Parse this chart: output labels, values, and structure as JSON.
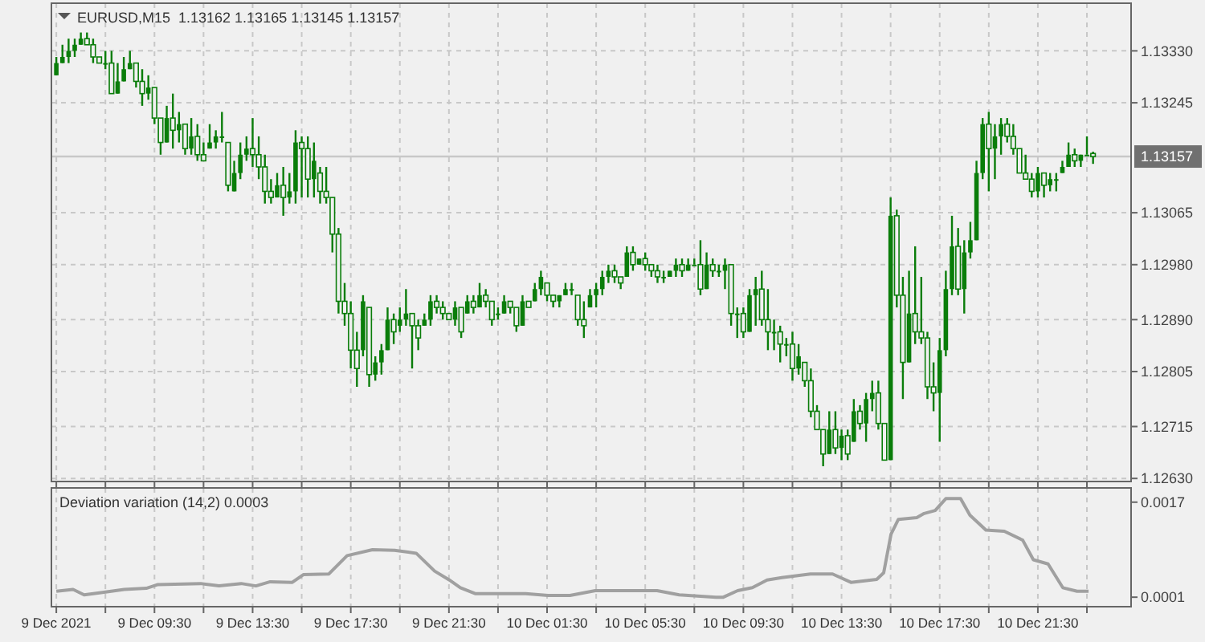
{
  "chart_data": [
    {
      "type": "candlestick",
      "title": "EURUSD,M15  1.13162 1.13165 1.13145 1.13157",
      "color": "#0a7d0a",
      "grid": true,
      "tick_labels": "y",
      "x": [
        "2021-12-09T05:30",
        "2021-12-09T05:45",
        "2021-12-09T06:00",
        "2021-12-09T06:15",
        "2021-12-09T06:30",
        "2021-12-09T06:45",
        "2021-12-09T07:00",
        "2021-12-09T07:15",
        "2021-12-09T07:30",
        "2021-12-09T07:45",
        "2021-12-09T08:00",
        "2021-12-09T08:15",
        "2021-12-09T08:30",
        "2021-12-09T08:45",
        "2021-12-09T09:00",
        "2021-12-09T09:15",
        "2021-12-09T09:30",
        "2021-12-09T09:45",
        "2021-12-09T10:00",
        "2021-12-09T10:15",
        "2021-12-09T10:30",
        "2021-12-09T10:45",
        "2021-12-09T11:00",
        "2021-12-09T11:15",
        "2021-12-09T11:30",
        "2021-12-09T11:45",
        "2021-12-09T12:00",
        "2021-12-09T12:15",
        "2021-12-09T12:30",
        "2021-12-09T12:45",
        "2021-12-09T13:00",
        "2021-12-09T13:15",
        "2021-12-09T13:30",
        "2021-12-09T13:45",
        "2021-12-09T14:00",
        "2021-12-09T14:15",
        "2021-12-09T14:30",
        "2021-12-09T14:45",
        "2021-12-09T15:00",
        "2021-12-09T15:15",
        "2021-12-09T15:30",
        "2021-12-09T15:45",
        "2021-12-09T16:00",
        "2021-12-09T16:15",
        "2021-12-09T16:30",
        "2021-12-09T16:45",
        "2021-12-09T17:00",
        "2021-12-09T17:15",
        "2021-12-09T17:30",
        "2021-12-09T17:45",
        "2021-12-09T18:00",
        "2021-12-09T18:15",
        "2021-12-09T18:30",
        "2021-12-09T18:45",
        "2021-12-09T19:00",
        "2021-12-09T19:15",
        "2021-12-09T19:30",
        "2021-12-09T19:45",
        "2021-12-09T20:00",
        "2021-12-09T20:15",
        "2021-12-09T20:30",
        "2021-12-09T20:45",
        "2021-12-09T21:00",
        "2021-12-09T21:15",
        "2021-12-09T21:30",
        "2021-12-09T21:45",
        "2021-12-09T22:00",
        "2021-12-09T22:15",
        "2021-12-09T22:30",
        "2021-12-09T22:45",
        "2021-12-09T23:00",
        "2021-12-09T23:15",
        "2021-12-09T23:30",
        "2021-12-09T23:45",
        "2021-12-10T00:00",
        "2021-12-10T00:15",
        "2021-12-10T00:30",
        "2021-12-10T00:45",
        "2021-12-10T01:00",
        "2021-12-10T01:15",
        "2021-12-10T01:30",
        "2021-12-10T01:45",
        "2021-12-10T02:00",
        "2021-12-10T02:15",
        "2021-12-10T02:30",
        "2021-12-10T02:45",
        "2021-12-10T03:00",
        "2021-12-10T03:15",
        "2021-12-10T03:30",
        "2021-12-10T03:45",
        "2021-12-10T04:00",
        "2021-12-10T04:15",
        "2021-12-10T04:30",
        "2021-12-10T04:45",
        "2021-12-10T05:00",
        "2021-12-10T05:15",
        "2021-12-10T05:30",
        "2021-12-10T05:45",
        "2021-12-10T06:00",
        "2021-12-10T06:15",
        "2021-12-10T06:30",
        "2021-12-10T06:45",
        "2021-12-10T07:00",
        "2021-12-10T07:15",
        "2021-12-10T07:30",
        "2021-12-10T07:45",
        "2021-12-10T08:00",
        "2021-12-10T08:15",
        "2021-12-10T08:30",
        "2021-12-10T08:45",
        "2021-12-10T09:00",
        "2021-12-10T09:15",
        "2021-12-10T09:30",
        "2021-12-10T09:45",
        "2021-12-10T10:00",
        "2021-12-10T10:15",
        "2021-12-10T10:30",
        "2021-12-10T10:45",
        "2021-12-10T11:00",
        "2021-12-10T11:15",
        "2021-12-10T11:30",
        "2021-12-10T11:45",
        "2021-12-10T12:00",
        "2021-12-10T12:15",
        "2021-12-10T12:30",
        "2021-12-10T12:45",
        "2021-12-10T13:00",
        "2021-12-10T13:15",
        "2021-12-10T13:30",
        "2021-12-10T13:45",
        "2021-12-10T14:00",
        "2021-12-10T14:15",
        "2021-12-10T14:30",
        "2021-12-10T14:45",
        "2021-12-10T15:00",
        "2021-12-10T15:15",
        "2021-12-10T15:30",
        "2021-12-10T15:45",
        "2021-12-10T16:00",
        "2021-12-10T16:15",
        "2021-12-10T16:30",
        "2021-12-10T16:45",
        "2021-12-10T17:00",
        "2021-12-10T17:15",
        "2021-12-10T17:30",
        "2021-12-10T17:45",
        "2021-12-10T18:00",
        "2021-12-10T18:15",
        "2021-12-10T18:30",
        "2021-12-10T18:45",
        "2021-12-10T19:00",
        "2021-12-10T19:15",
        "2021-12-10T19:30",
        "2021-12-10T19:45",
        "2021-12-10T20:00",
        "2021-12-10T20:15",
        "2021-12-10T20:30",
        "2021-12-10T20:45",
        "2021-12-10T21:00",
        "2021-12-10T21:15",
        "2021-12-10T21:30",
        "2021-12-10T21:45",
        "2021-12-10T22:00",
        "2021-12-10T22:15",
        "2021-12-10T22:30",
        "2021-12-10T22:45",
        "2021-12-10T23:00",
        "2021-12-10T23:15",
        "2021-12-10T23:30",
        "2021-12-10T23:45"
      ],
      "ohlc": [
        [
          1.1329,
          1.1332,
          1.1329,
          1.1331
        ],
        [
          1.1331,
          1.1334,
          1.1331,
          1.1332
        ],
        [
          1.1332,
          1.1335,
          1.1331,
          1.1333
        ],
        [
          1.1333,
          1.1335,
          1.1332,
          1.1334
        ],
        [
          1.1334,
          1.1336,
          1.1334,
          1.1335
        ],
        [
          1.1335,
          1.1336,
          1.1334,
          1.1334
        ],
        [
          1.1334,
          1.1335,
          1.1331,
          1.1332
        ],
        [
          1.1332,
          1.1332,
          1.1331,
          1.1331
        ],
        [
          1.1331,
          1.1333,
          1.133,
          1.1331
        ],
        [
          1.1331,
          1.1333,
          1.1326,
          1.1326
        ],
        [
          1.1326,
          1.1331,
          1.1326,
          1.1328
        ],
        [
          1.1328,
          1.1332,
          1.1328,
          1.133
        ],
        [
          1.133,
          1.1333,
          1.133,
          1.1331
        ],
        [
          1.1331,
          1.1331,
          1.1327,
          1.1328
        ],
        [
          1.1328,
          1.133,
          1.1324,
          1.1326
        ],
        [
          1.1326,
          1.1329,
          1.1325,
          1.1327
        ],
        [
          1.1327,
          1.1327,
          1.1321,
          1.1322
        ],
        [
          1.1322,
          1.1322,
          1.1316,
          1.1318
        ],
        [
          1.1318,
          1.1324,
          1.1318,
          1.1322
        ],
        [
          1.1322,
          1.1326,
          1.1317,
          1.132
        ],
        [
          1.132,
          1.1323,
          1.1318,
          1.1321
        ],
        [
          1.1321,
          1.1321,
          1.1316,
          1.1317
        ],
        [
          1.1317,
          1.1322,
          1.1316,
          1.1319
        ],
        [
          1.1319,
          1.1321,
          1.1315,
          1.1316
        ],
        [
          1.1316,
          1.1318,
          1.1315,
          1.1315
        ],
        [
          1.1317,
          1.1321,
          1.1317,
          1.1318
        ],
        [
          1.1318,
          1.132,
          1.1317,
          1.1319
        ],
        [
          1.1319,
          1.1323,
          1.1318,
          1.1319
        ],
        [
          1.1318,
          1.1318,
          1.131,
          1.1311
        ],
        [
          1.131,
          1.1315,
          1.131,
          1.1313
        ],
        [
          1.1313,
          1.1318,
          1.1312,
          1.1316
        ],
        [
          1.1316,
          1.1319,
          1.1315,
          1.1317
        ],
        [
          1.1317,
          1.1322,
          1.1314,
          1.1316
        ],
        [
          1.1316,
          1.1319,
          1.1312,
          1.1314
        ],
        [
          1.1314,
          1.1316,
          1.1308,
          1.131
        ],
        [
          1.131,
          1.1312,
          1.1308,
          1.1309
        ],
        [
          1.1309,
          1.1313,
          1.1309,
          1.1311
        ],
        [
          1.1311,
          1.1314,
          1.1306,
          1.1309
        ],
        [
          1.1309,
          1.1313,
          1.1308,
          1.131
        ],
        [
          1.131,
          1.132,
          1.1308,
          1.1318
        ],
        [
          1.1318,
          1.1319,
          1.1309,
          1.1317
        ],
        [
          1.1317,
          1.1319,
          1.1309,
          1.1312
        ],
        [
          1.1312,
          1.1318,
          1.1309,
          1.1315
        ],
        [
          1.1313,
          1.1314,
          1.1308,
          1.131
        ],
        [
          1.131,
          1.1314,
          1.1308,
          1.1309
        ],
        [
          1.1309,
          1.1309,
          1.13,
          1.1303
        ],
        [
          1.1303,
          1.1304,
          1.129,
          1.1292
        ],
        [
          1.1292,
          1.1295,
          1.1288,
          1.129
        ],
        [
          1.129,
          1.1292,
          1.1281,
          1.1284
        ],
        [
          1.1284,
          1.1287,
          1.1278,
          1.1281
        ],
        [
          1.1284,
          1.1293,
          1.1283,
          1.1292
        ],
        [
          1.1291,
          1.1291,
          1.1278,
          1.128
        ],
        [
          1.128,
          1.1283,
          1.1279,
          1.1282
        ],
        [
          1.1282,
          1.1285,
          1.128,
          1.1284
        ],
        [
          1.1284,
          1.1291,
          1.1284,
          1.1289
        ],
        [
          1.1289,
          1.129,
          1.1285,
          1.1287
        ],
        [
          1.1288,
          1.1291,
          1.1287,
          1.1289
        ],
        [
          1.1289,
          1.1294,
          1.1288,
          1.129
        ],
        [
          1.129,
          1.129,
          1.1281,
          1.1288
        ],
        [
          1.1288,
          1.1289,
          1.1284,
          1.1286
        ],
        [
          1.1288,
          1.129,
          1.1288,
          1.1289
        ],
        [
          1.1289,
          1.1293,
          1.1288,
          1.1292
        ],
        [
          1.1292,
          1.1293,
          1.129,
          1.1291
        ],
        [
          1.1291,
          1.1292,
          1.1289,
          1.129
        ],
        [
          1.129,
          1.129,
          1.1289,
          1.1289
        ],
        [
          1.1289,
          1.1292,
          1.1288,
          1.1291
        ],
        [
          1.1291,
          1.1291,
          1.1286,
          1.1287
        ],
        [
          1.129,
          1.1293,
          1.129,
          1.1292
        ],
        [
          1.1292,
          1.1293,
          1.129,
          1.1291
        ],
        [
          1.1291,
          1.1295,
          1.1291,
          1.1293
        ],
        [
          1.1293,
          1.1294,
          1.1291,
          1.1292
        ],
        [
          1.1292,
          1.1292,
          1.1288,
          1.1289
        ],
        [
          1.129,
          1.1291,
          1.1289,
          1.129
        ],
        [
          1.129,
          1.1293,
          1.129,
          1.1292
        ],
        [
          1.1292,
          1.1292,
          1.129,
          1.1291
        ],
        [
          1.1291,
          1.1291,
          1.1287,
          1.1288
        ],
        [
          1.1288,
          1.1293,
          1.1288,
          1.1292
        ],
        [
          1.1292,
          1.1292,
          1.1291,
          1.1291
        ],
        [
          1.1292,
          1.1295,
          1.1292,
          1.1294
        ],
        [
          1.1294,
          1.1297,
          1.1293,
          1.1296
        ],
        [
          1.1295,
          1.1295,
          1.1292,
          1.1293
        ],
        [
          1.1293,
          1.1293,
          1.1291,
          1.1292
        ],
        [
          1.1292,
          1.1293,
          1.1291,
          1.1293
        ],
        [
          1.1293,
          1.1295,
          1.1293,
          1.1294
        ],
        [
          1.1294,
          1.1295,
          1.1293,
          1.1294
        ],
        [
          1.1293,
          1.1293,
          1.1288,
          1.1289
        ],
        [
          1.1289,
          1.1292,
          1.1286,
          1.1288
        ],
        [
          1.1291,
          1.1294,
          1.1291,
          1.1293
        ],
        [
          1.1293,
          1.1295,
          1.1291,
          1.1294
        ],
        [
          1.1294,
          1.1297,
          1.1293,
          1.1296
        ],
        [
          1.1296,
          1.1298,
          1.1295,
          1.1297
        ],
        [
          1.1297,
          1.1298,
          1.1295,
          1.1296
        ],
        [
          1.1296,
          1.1296,
          1.1294,
          1.1295
        ],
        [
          1.1296,
          1.1301,
          1.1296,
          1.13
        ],
        [
          1.13,
          1.1301,
          1.1297,
          1.1298
        ],
        [
          1.1298,
          1.1299,
          1.1298,
          1.1299
        ],
        [
          1.1299,
          1.13,
          1.1297,
          1.1298
        ],
        [
          1.1298,
          1.1298,
          1.1296,
          1.1297
        ],
        [
          1.1297,
          1.1298,
          1.1295,
          1.1296
        ],
        [
          1.1296,
          1.1297,
          1.1295,
          1.1296
        ],
        [
          1.1296,
          1.1297,
          1.1296,
          1.1297
        ],
        [
          1.1297,
          1.1299,
          1.1296,
          1.1298
        ],
        [
          1.1298,
          1.1299,
          1.1296,
          1.1297
        ],
        [
          1.1297,
          1.1299,
          1.1297,
          1.1298
        ],
        [
          1.1298,
          1.1299,
          1.1298,
          1.1298
        ],
        [
          1.1298,
          1.1302,
          1.1293,
          1.1294
        ],
        [
          1.1294,
          1.13,
          1.1294,
          1.1298
        ],
        [
          1.1298,
          1.1299,
          1.1296,
          1.1297
        ],
        [
          1.1297,
          1.1298,
          1.1296,
          1.1297
        ],
        [
          1.1297,
          1.1299,
          1.1294,
          1.1298
        ],
        [
          1.1298,
          1.1298,
          1.1288,
          1.129
        ],
        [
          1.129,
          1.1291,
          1.1286,
          1.129
        ],
        [
          1.129,
          1.1291,
          1.1286,
          1.1287
        ],
        [
          1.1287,
          1.1294,
          1.1287,
          1.1293
        ],
        [
          1.1293,
          1.1296,
          1.1288,
          1.1294
        ],
        [
          1.1294,
          1.1297,
          1.1288,
          1.1289
        ],
        [
          1.1289,
          1.1294,
          1.1284,
          1.1287
        ],
        [
          1.1287,
          1.1289,
          1.1284,
          1.1287
        ],
        [
          1.1287,
          1.1288,
          1.1282,
          1.1285
        ],
        [
          1.1285,
          1.1286,
          1.1283,
          1.1285
        ],
        [
          1.1285,
          1.1287,
          1.1279,
          1.1281
        ],
        [
          1.1281,
          1.1285,
          1.128,
          1.1283
        ],
        [
          1.1282,
          1.1282,
          1.1278,
          1.1279
        ],
        [
          1.1279,
          1.1281,
          1.1273,
          1.1274
        ],
        [
          1.1274,
          1.1275,
          1.1271,
          1.1271
        ],
        [
          1.1271,
          1.1271,
          1.1265,
          1.1267
        ],
        [
          1.1267,
          1.1274,
          1.1267,
          1.1271
        ],
        [
          1.1271,
          1.1274,
          1.1267,
          1.1268
        ],
        [
          1.1268,
          1.1271,
          1.1266,
          1.127
        ],
        [
          1.127,
          1.1271,
          1.1266,
          1.1267
        ],
        [
          1.1269,
          1.1276,
          1.1269,
          1.1274
        ],
        [
          1.1274,
          1.1275,
          1.1271,
          1.1272
        ],
        [
          1.1272,
          1.1277,
          1.1269,
          1.1276
        ],
        [
          1.1276,
          1.1279,
          1.1274,
          1.1277
        ],
        [
          1.1277,
          1.1279,
          1.1271,
          1.1272
        ],
        [
          1.1272,
          1.1272,
          1.1266,
          1.1266
        ],
        [
          1.1266,
          1.1309,
          1.1266,
          1.1306
        ],
        [
          1.1306,
          1.1307,
          1.1291,
          1.1293
        ],
        [
          1.1293,
          1.1296,
          1.1276,
          1.1282
        ],
        [
          1.1282,
          1.1297,
          1.1282,
          1.129
        ],
        [
          1.129,
          1.1301,
          1.1285,
          1.1287
        ],
        [
          1.1287,
          1.1296,
          1.1285,
          1.1286
        ],
        [
          1.1286,
          1.1287,
          1.1276,
          1.1278
        ],
        [
          1.1278,
          1.1282,
          1.1274,
          1.1277
        ],
        [
          1.1277,
          1.1286,
          1.1269,
          1.1284
        ],
        [
          1.1284,
          1.1297,
          1.1283,
          1.1294
        ],
        [
          1.1294,
          1.1306,
          1.1293,
          1.1301
        ],
        [
          1.1301,
          1.1304,
          1.1293,
          1.1294
        ],
        [
          1.1294,
          1.1302,
          1.129,
          1.13
        ],
        [
          1.13,
          1.1305,
          1.1299,
          1.1302
        ],
        [
          1.1302,
          1.1315,
          1.1302,
          1.1313
        ],
        [
          1.1313,
          1.1322,
          1.1312,
          1.1321
        ],
        [
          1.1321,
          1.1323,
          1.131,
          1.1317
        ],
        [
          1.1317,
          1.1321,
          1.1312,
          1.1319
        ],
        [
          1.1319,
          1.1322,
          1.1316,
          1.1321
        ],
        [
          1.1321,
          1.1322,
          1.1318,
          1.1319
        ],
        [
          1.1319,
          1.1321,
          1.1316,
          1.1317
        ],
        [
          1.1317,
          1.1317,
          1.1313,
          1.1313
        ],
        [
          1.1313,
          1.1316,
          1.1312,
          1.1312
        ],
        [
          1.1312,
          1.1313,
          1.1309,
          1.131
        ],
        [
          1.131,
          1.1314,
          1.1309,
          1.1313
        ],
        [
          1.1313,
          1.1313,
          1.1309,
          1.1311
        ],
        [
          1.1311,
          1.1313,
          1.131,
          1.1312
        ],
        [
          1.1312,
          1.1313,
          1.131,
          1.1312
        ],
        [
          1.1313,
          1.1315,
          1.1313,
          1.1314
        ],
        [
          1.1314,
          1.1318,
          1.1314,
          1.1316
        ],
        [
          1.1316,
          1.1317,
          1.1314,
          1.1315
        ],
        [
          1.1315,
          1.1316,
          1.1314,
          1.1316
        ],
        [
          1.1316,
          1.1319,
          1.1316,
          1.1316
        ],
        [
          1.13162,
          1.13165,
          1.13145,
          1.13157
        ]
      ],
      "xlim": [
        "2021-12-09T05:18",
        "2021-12-11T01:18"
      ],
      "xticks": [
        {
          "value": "2021-12-09T05:30",
          "label": null
        },
        {
          "value": "2021-12-09T07:30",
          "label": null
        },
        {
          "value": "2021-12-09T09:30",
          "label": null
        },
        {
          "value": "2021-12-09T11:30",
          "label": null
        },
        {
          "value": "2021-12-09T13:30",
          "label": null
        },
        {
          "value": "2021-12-09T15:30",
          "label": null
        },
        {
          "value": "2021-12-09T17:30",
          "label": null
        },
        {
          "value": "2021-12-09T19:30",
          "label": null
        },
        {
          "value": "2021-12-09T21:30",
          "label": null
        },
        {
          "value": "2021-12-09T23:30",
          "label": null
        },
        {
          "value": "2021-12-10T01:30",
          "label": null
        },
        {
          "value": "2021-12-10T03:30",
          "label": null
        },
        {
          "value": "2021-12-10T05:30",
          "label": null
        },
        {
          "value": "2021-12-10T07:30",
          "label": null
        },
        {
          "value": "2021-12-10T09:30",
          "label": null
        },
        {
          "value": "2021-12-10T11:30",
          "label": null
        },
        {
          "value": "2021-12-10T13:30",
          "label": null
        },
        {
          "value": "2021-12-10T15:30",
          "label": null
        },
        {
          "value": "2021-12-10T17:30",
          "label": null
        },
        {
          "value": "2021-12-10T19:30",
          "label": null
        },
        {
          "value": "2021-12-10T21:30",
          "label": null
        },
        {
          "value": "2021-12-10T23:30",
          "label": null
        }
      ],
      "ylim": [
        1.12625,
        1.13408
      ],
      "yticks": [
        {
          "value": 1.1333,
          "label": "1.13330"
        },
        {
          "value": 1.13245,
          "label": "1.13245"
        },
        {
          "value": 1.13065,
          "label": "1.13065"
        },
        {
          "value": 1.1298,
          "label": "1.12980"
        },
        {
          "value": 1.1289,
          "label": "1.12890"
        },
        {
          "value": 1.12805,
          "label": "1.12805"
        },
        {
          "value": 1.12715,
          "label": "1.12715"
        },
        {
          "value": 1.1263,
          "label": "1.12630"
        }
      ],
      "ref_lines": [
        {
          "axis": "y",
          "value": 1.13157,
          "label": "1.13157",
          "color": "#c8c8c8"
        }
      ]
    },
    {
      "type": "line",
      "title": "Deviation variation (14,2) 0.0003",
      "grid": "x",
      "series": [
        {
          "color": "#a0a0a0",
          "x": [
            "2021-12-09T05:30",
            "2021-12-09T06:11",
            "2021-12-09T06:38",
            "2021-12-09T07:23",
            "2021-12-09T08:16",
            "2021-12-09T09:10",
            "2021-12-09T09:37",
            "2021-12-09T11:23",
            "2021-12-09T12:08",
            "2021-12-09T13:02",
            "2021-12-09T13:38",
            "2021-12-09T14:13",
            "2021-12-09T15:07",
            "2021-12-09T15:34",
            "2021-12-09T16:36",
            "2021-12-09T17:21",
            "2021-12-09T18:23",
            "2021-12-09T19:17",
            "2021-12-09T20:10",
            "2021-12-09T20:55",
            "2021-12-09T21:31",
            "2021-12-09T21:58",
            "2021-12-09T22:34",
            "2021-12-10T00:38",
            "2021-12-10T01:32",
            "2021-12-10T02:26",
            "2021-12-10T03:28",
            "2021-12-10T05:59",
            "2021-12-10T06:53",
            "2021-12-10T08:23",
            "2021-12-10T08:41",
            "2021-12-10T09:16",
            "2021-12-10T09:52",
            "2021-12-10T10:28",
            "2021-12-10T11:04",
            "2021-12-10T12:14",
            "2021-12-10T13:08",
            "2021-12-10T13:53",
            "2021-12-10T14:56",
            "2021-12-10T15:13",
            "2021-12-10T15:31",
            "2021-12-10T15:49",
            "2021-12-10T16:34",
            "2021-12-10T16:52",
            "2021-12-10T17:19",
            "2021-12-10T17:45",
            "2021-12-10T18:21",
            "2021-12-10T18:44",
            "2021-12-10T19:23",
            "2021-12-10T20:08",
            "2021-12-10T20:53",
            "2021-12-10T21:19",
            "2021-12-10T21:55",
            "2021-12-10T22:31",
            "2021-12-10T23:06",
            "2021-12-10T23:34"
          ],
          "values": [
            0.0002,
            0.00023,
            0.00014,
            0.00018,
            0.00023,
            0.00025,
            0.00031,
            0.00033,
            0.00029,
            0.00033,
            0.00029,
            0.00036,
            0.00035,
            0.00048,
            0.00049,
            0.0008,
            0.0009,
            0.00089,
            0.00084,
            0.00054,
            0.00039,
            0.00026,
            0.00016,
            0.00016,
            0.00013,
            0.00013,
            0.00021,
            0.00021,
            0.00014,
            0.0001,
            0.0001,
            0.00021,
            0.00026,
            0.00039,
            0.00043,
            0.00049,
            0.00049,
            0.00035,
            0.0004,
            0.00051,
            0.00116,
            0.00141,
            0.00144,
            0.00151,
            0.00156,
            0.00176,
            0.00176,
            0.00148,
            0.00123,
            0.00121,
            0.00106,
            0.00073,
            0.00066,
            0.00026,
            0.0002,
            0.0002
          ]
        }
      ],
      "xlim": [
        "2021-12-09T05:18",
        "2021-12-11T01:18"
      ],
      "xticks": [
        {
          "value": "2021-12-09T05:30",
          "label": "9 Dec 2021"
        },
        {
          "value": "2021-12-09T07:30",
          "label": null
        },
        {
          "value": "2021-12-09T09:30",
          "label": "9 Dec 09:30"
        },
        {
          "value": "2021-12-09T11:30",
          "label": null
        },
        {
          "value": "2021-12-09T13:30",
          "label": "9 Dec 13:30"
        },
        {
          "value": "2021-12-09T15:30",
          "label": null
        },
        {
          "value": "2021-12-09T17:30",
          "label": "9 Dec 17:30"
        },
        {
          "value": "2021-12-09T19:30",
          "label": null
        },
        {
          "value": "2021-12-09T21:30",
          "label": "9 Dec 21:30"
        },
        {
          "value": "2021-12-09T23:30",
          "label": null
        },
        {
          "value": "2021-12-10T01:30",
          "label": "10 Dec 01:30"
        },
        {
          "value": "2021-12-10T03:30",
          "label": null
        },
        {
          "value": "2021-12-10T05:30",
          "label": "10 Dec 05:30"
        },
        {
          "value": "2021-12-10T07:30",
          "label": null
        },
        {
          "value": "2021-12-10T09:30",
          "label": "10 Dec 09:30"
        },
        {
          "value": "2021-12-10T11:30",
          "label": null
        },
        {
          "value": "2021-12-10T13:30",
          "label": "10 Dec 13:30"
        },
        {
          "value": "2021-12-10T15:30",
          "label": null
        },
        {
          "value": "2021-12-10T17:30",
          "label": "10 Dec 17:30"
        },
        {
          "value": "2021-12-10T19:30",
          "label": null
        },
        {
          "value": "2021-12-10T21:30",
          "label": "10 Dec 21:30"
        },
        {
          "value": "2021-12-10T23:30",
          "label": null
        }
      ],
      "ylim": [
        -6e-05,
        0.00194
      ],
      "yticks": [
        0.0017,
        0.0001
      ]
    }
  ]
}
